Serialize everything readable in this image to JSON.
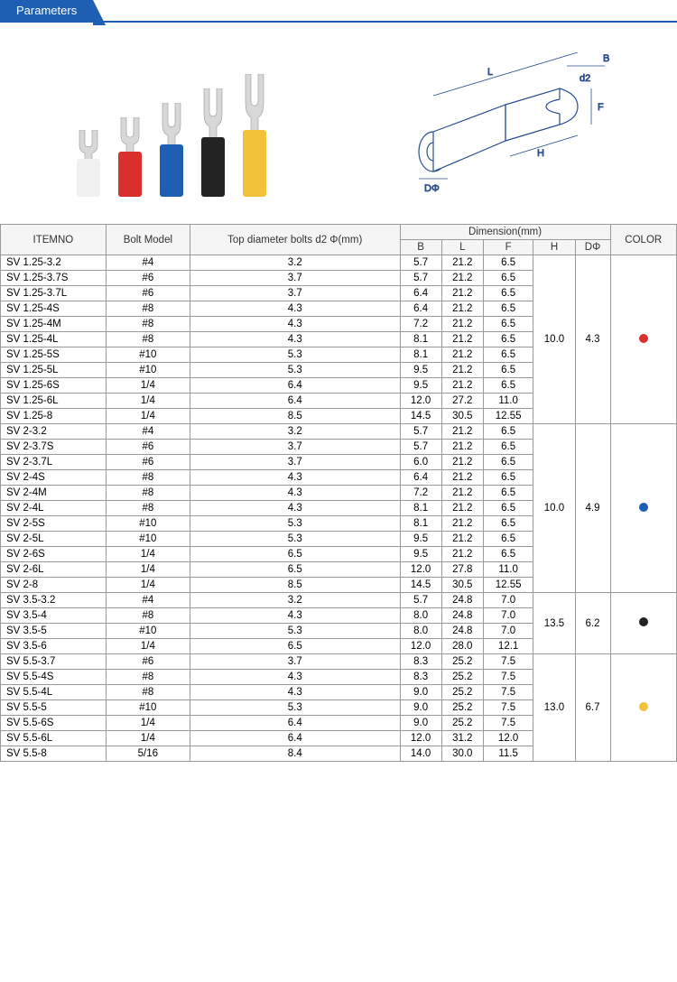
{
  "header": {
    "tab_label": "Parameters"
  },
  "table": {
    "headers": {
      "itemno": "ITEMNO",
      "bolt_model": "Bolt Model",
      "top_diameter": "Top diameter bolts d2 Φ(mm)",
      "dimension": "Dimension(mm)",
      "B": "B",
      "L": "L",
      "F": "F",
      "H": "H",
      "D": "DΦ",
      "color": "COLOR"
    },
    "groups": [
      {
        "H": "10.0",
        "D": "4.3",
        "color": "#d9302c",
        "rows": [
          {
            "item": "SV  1.25-3.2",
            "bolt": "#4",
            "d2": "3.2",
            "B": "5.7",
            "L": "21.2",
            "F": "6.5"
          },
          {
            "item": "SV  1.25-3.7S",
            "bolt": "#6",
            "d2": "3.7",
            "B": "5.7",
            "L": "21.2",
            "F": "6.5"
          },
          {
            "item": "SV  1.25-3.7L",
            "bolt": "#6",
            "d2": "3.7",
            "B": "6.4",
            "L": "21.2",
            "F": "6.5"
          },
          {
            "item": "SV  1.25-4S",
            "bolt": "#8",
            "d2": "4.3",
            "B": "6.4",
            "L": "21.2",
            "F": "6.5"
          },
          {
            "item": "SV  1.25-4M",
            "bolt": "#8",
            "d2": "4.3",
            "B": "7.2",
            "L": "21.2",
            "F": "6.5"
          },
          {
            "item": "SV  1.25-4L",
            "bolt": "#8",
            "d2": "4.3",
            "B": "8.1",
            "L": "21.2",
            "F": "6.5"
          },
          {
            "item": "SV  1.25-5S",
            "bolt": "#10",
            "d2": "5.3",
            "B": "8.1",
            "L": "21.2",
            "F": "6.5"
          },
          {
            "item": "SV  1.25-5L",
            "bolt": "#10",
            "d2": "5.3",
            "B": "9.5",
            "L": "21.2",
            "F": "6.5"
          },
          {
            "item": "SV  1.25-6S",
            "bolt": "1/4",
            "d2": "6.4",
            "B": "9.5",
            "L": "21.2",
            "F": "6.5"
          },
          {
            "item": "SV  1.25-6L",
            "bolt": "1/4",
            "d2": "6.4",
            "B": "12.0",
            "L": "27.2",
            "F": "11.0"
          },
          {
            "item": "SV  1.25-8",
            "bolt": "1/4",
            "d2": "8.5",
            "B": "14.5",
            "L": "30.5",
            "F": "12.55"
          }
        ]
      },
      {
        "H": "10.0",
        "D": "4.9",
        "color": "#1e5fb3",
        "rows": [
          {
            "item": "SV  2-3.2",
            "bolt": "#4",
            "d2": "3.2",
            "B": "5.7",
            "L": "21.2",
            "F": "6.5"
          },
          {
            "item": "SV  2-3.7S",
            "bolt": "#6",
            "d2": "3.7",
            "B": "5.7",
            "L": "21.2",
            "F": "6.5"
          },
          {
            "item": "SV  2-3.7L",
            "bolt": "#6",
            "d2": "3.7",
            "B": "6.0",
            "L": "21.2",
            "F": "6.5"
          },
          {
            "item": "SV  2-4S",
            "bolt": "#8",
            "d2": "4.3",
            "B": "6.4",
            "L": "21.2",
            "F": "6.5"
          },
          {
            "item": "SV  2-4M",
            "bolt": "#8",
            "d2": "4.3",
            "B": "7.2",
            "L": "21.2",
            "F": "6.5"
          },
          {
            "item": "SV  2-4L",
            "bolt": "#8",
            "d2": "4.3",
            "B": "8.1",
            "L": "21.2",
            "F": "6.5"
          },
          {
            "item": "SV  2-5S",
            "bolt": "#10",
            "d2": "5.3",
            "B": "8.1",
            "L": "21.2",
            "F": "6.5"
          },
          {
            "item": "SV  2-5L",
            "bolt": "#10",
            "d2": "5.3",
            "B": "9.5",
            "L": "21.2",
            "F": "6.5"
          },
          {
            "item": "SV  2-6S",
            "bolt": "1/4",
            "d2": "6.5",
            "B": "9.5",
            "L": "21.2",
            "F": "6.5"
          },
          {
            "item": "SV  2-6L",
            "bolt": "1/4",
            "d2": "6.5",
            "B": "12.0",
            "L": "27.8",
            "F": "11.0"
          },
          {
            "item": "SV  2-8",
            "bolt": "1/4",
            "d2": "8.5",
            "B": "14.5",
            "L": "30.5",
            "F": "12.55"
          }
        ]
      },
      {
        "H": "13.5",
        "D": "6.2",
        "color": "#222222",
        "rows": [
          {
            "item": "SV  3.5-3.2",
            "bolt": "#4",
            "d2": "3.2",
            "B": "5.7",
            "L": "24.8",
            "F": "7.0"
          },
          {
            "item": "SV  3.5-4",
            "bolt": "#8",
            "d2": "4.3",
            "B": "8.0",
            "L": "24.8",
            "F": "7.0"
          },
          {
            "item": "SV  3.5-5",
            "bolt": "#10",
            "d2": "5.3",
            "B": "8.0",
            "L": "24.8",
            "F": "7.0"
          },
          {
            "item": "SV  3.5-6",
            "bolt": "1/4",
            "d2": "6.5",
            "B": "12.0",
            "L": "28.0",
            "F": "12.1"
          }
        ]
      },
      {
        "H": "13.0",
        "D": "6.7",
        "color": "#f2c238",
        "rows": [
          {
            "item": "SV  5.5-3.7",
            "bolt": "#6",
            "d2": "3.7",
            "B": "8.3",
            "L": "25.2",
            "F": "7.5"
          },
          {
            "item": "SV  5.5-4S",
            "bolt": "#8",
            "d2": "4.3",
            "B": "8.3",
            "L": "25.2",
            "F": "7.5"
          },
          {
            "item": "SV  5.5-4L",
            "bolt": "#8",
            "d2": "4.3",
            "B": "9.0",
            "L": "25.2",
            "F": "7.5"
          },
          {
            "item": "SV  5.5-5",
            "bolt": "#10",
            "d2": "5.3",
            "B": "9.0",
            "L": "25.2",
            "F": "7.5"
          },
          {
            "item": "SV  5.5-6S",
            "bolt": "1/4",
            "d2": "6.4",
            "B": "9.0",
            "L": "25.2",
            "F": "7.5"
          },
          {
            "item": "SV  5.5-6L",
            "bolt": "1/4",
            "d2": "6.4",
            "B": "12.0",
            "L": "31.2",
            "F": "12.0"
          },
          {
            "item": "SV  5.5-8",
            "bolt": "5/16",
            "d2": "8.4",
            "B": "14.0",
            "L": "30.0",
            "F": "11.5"
          }
        ]
      }
    ]
  },
  "terminals": [
    {
      "sleeve_color": "#f0f0f0",
      "sleeve_h": 42,
      "fork_h": 34
    },
    {
      "sleeve_color": "#d9302c",
      "sleeve_h": 50,
      "fork_h": 40
    },
    {
      "sleeve_color": "#1e5fb3",
      "sleeve_h": 58,
      "fork_h": 48
    },
    {
      "sleeve_color": "#222222",
      "sleeve_h": 66,
      "fork_h": 56
    },
    {
      "sleeve_color": "#f2c238",
      "sleeve_h": 74,
      "fork_h": 64
    }
  ],
  "diagram_labels": {
    "B": "B",
    "d2": "d2",
    "L": "L",
    "F": "F",
    "H": "H",
    "D": "DΦ"
  }
}
